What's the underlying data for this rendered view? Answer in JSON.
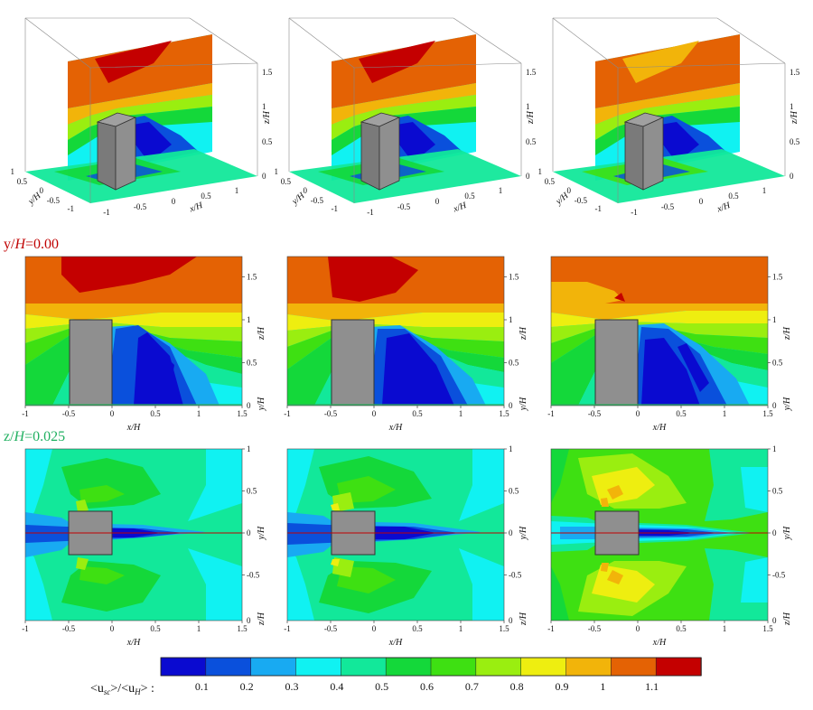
{
  "colorbar": {
    "colors": [
      "#0a0ad0",
      "#0a50dc",
      "#18aaf2",
      "#10f2f2",
      "#12e89a",
      "#14d83a",
      "#3ee012",
      "#9aee10",
      "#eeee10",
      "#f2b40a",
      "#e46204",
      "#c40000"
    ],
    "ticks": [
      "0.1",
      "0.2",
      "0.3",
      "0.4",
      "0.5",
      "0.6",
      "0.7",
      "0.8",
      "0.9",
      "1",
      "1.1"
    ],
    "label_prefix": "<u",
    "label_sub1": "sc",
    "label_mid": ">/<u",
    "label_sub2": "H",
    "label_suffix": "> :"
  },
  "row_labels": {
    "side": {
      "prefix": "y/",
      "var": "H",
      "value": "=0.00",
      "color": "#c00000"
    },
    "plan": {
      "prefix": "z/",
      "var": "H",
      "value": "=0.025",
      "color": "#20b060"
    }
  },
  "iso_axes": {
    "z_ticks": [
      "0",
      "0.5",
      "1",
      "1.5"
    ],
    "y_ticks": [
      "1",
      "0.5",
      "0",
      "-0.5",
      "-1"
    ],
    "x_ticks": [
      "-1",
      "-0.5",
      "0",
      "0.5",
      "1"
    ],
    "x_title": "x/H",
    "y_title": "y/H",
    "z_title": "z/H"
  },
  "side_axes": {
    "x_ticks": [
      "-1",
      "-0.5",
      "0",
      "0.5",
      "1",
      "1.5"
    ],
    "z_ticks": [
      "0.5",
      "1",
      "1.5"
    ],
    "x_title": "x/H",
    "right_title": "z/H",
    "right_extra": "y/H",
    "right_zero": "0"
  },
  "plan_axes": {
    "x_ticks": [
      "-1",
      "-0.5",
      "0",
      "0.5",
      "1",
      "1.5"
    ],
    "y_ticks": [
      "1",
      "0.5",
      "0",
      "-0.5"
    ],
    "x_title": "x/H",
    "right_title": "y/H",
    "right_extra": "z/H",
    "right_zero": "0"
  }
}
